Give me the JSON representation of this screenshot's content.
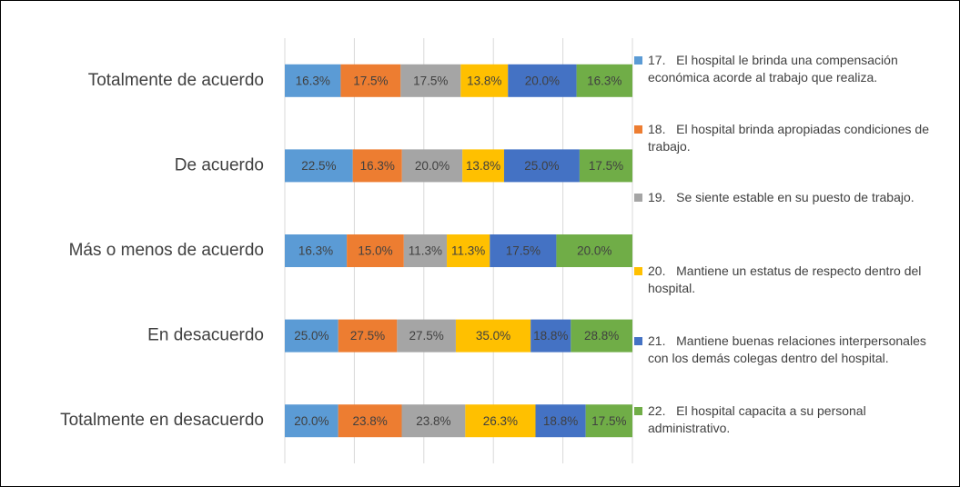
{
  "chart_data": {
    "type": "bar",
    "orientation": "horizontal",
    "stacked": "percent",
    "categories": [
      "Totalmente de acuerdo",
      "De acuerdo",
      "Más o menos de acuerdo",
      "En desacuerdo",
      "Totalmente en desacuerdo"
    ],
    "series": [
      {
        "name": "17.   El hospital le brinda una compensación económica acorde al trabajo que realiza.",
        "color": "#5b9bd5",
        "values": [
          16.3,
          22.5,
          16.3,
          25.0,
          20.0
        ],
        "value_labels": [
          "16.3%",
          "22.5%",
          "16.3%",
          "25.0%",
          "20.0%"
        ]
      },
      {
        "name": "18.   El hospital brinda apropiadas condiciones de trabajo.",
        "color": "#ed7d31",
        "values": [
          17.5,
          16.3,
          15.0,
          27.5,
          23.8
        ],
        "value_labels": [
          "17.5%",
          "16.3%",
          "15.0%",
          "27.5%",
          "23.8%"
        ]
      },
      {
        "name": "19.   Se siente estable en su puesto de trabajo.",
        "color": "#a5a5a5",
        "values": [
          17.5,
          20.0,
          11.3,
          27.5,
          23.8
        ],
        "value_labels": [
          "17.5%",
          "20.0%",
          "11.3%",
          "27.5%",
          "23.8%"
        ]
      },
      {
        "name": "20.   Mantiene un estatus de respecto dentro del hospital.",
        "color": "#ffc000",
        "values": [
          13.8,
          13.8,
          11.3,
          35.0,
          26.3
        ],
        "value_labels": [
          "13.8%",
          "13.8%",
          "11.3%",
          "35.0%",
          "26.3%"
        ]
      },
      {
        "name": "21.   Mantiene buenas relaciones interpersonales con los demás colegas dentro del hospital.",
        "color": "#4472c4",
        "values": [
          20.0,
          25.0,
          17.5,
          18.8,
          18.8
        ],
        "value_labels": [
          "20.0%",
          "25.0%",
          "17.5%",
          "18.8%",
          "18.8%"
        ]
      },
      {
        "name": "22.   El hospital capacita a su personal administrativo.",
        "color": "#70ad47",
        "values": [
          16.3,
          17.5,
          20.0,
          28.8,
          17.5
        ],
        "value_labels": [
          "16.3%",
          "17.5%",
          "20.0%",
          "28.8%",
          "17.5%"
        ]
      }
    ],
    "xlim": [
      0,
      100
    ],
    "xticks": [
      0,
      20,
      40,
      60,
      80,
      100
    ],
    "grid": true,
    "legend": "right"
  }
}
